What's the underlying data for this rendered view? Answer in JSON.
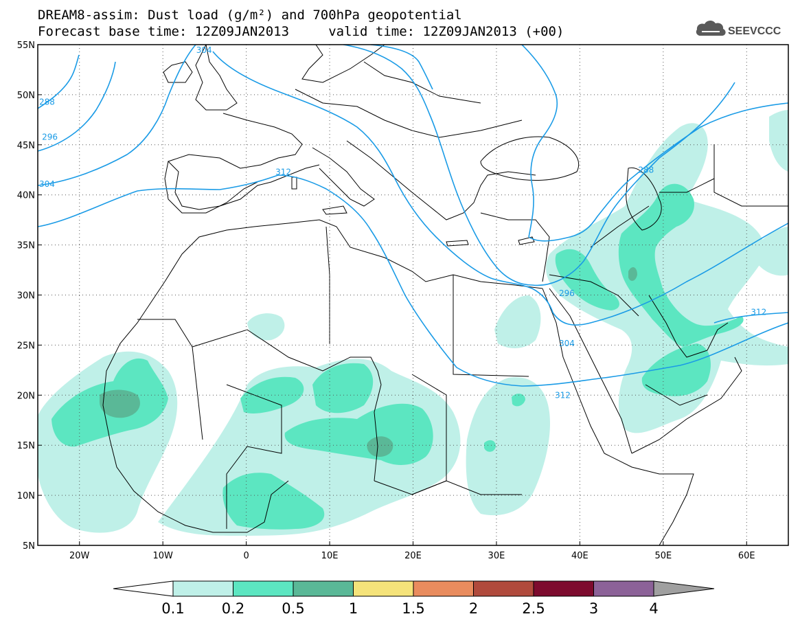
{
  "header": {
    "title_line1": "DREAM8-assim: Dust load (g/m²) and 700hPa geopotential",
    "title_line2": "Forecast base time: 12Z09JAN2013     valid time: 12Z09JAN2013 (+00)",
    "logo_text": "SEEVCCC"
  },
  "map": {
    "lon_range": [
      -25,
      65
    ],
    "lat_range": [
      5,
      55
    ],
    "grid": true,
    "lon_ticks": [
      "20W",
      "10W",
      "0",
      "10E",
      "20E",
      "30E",
      "40E",
      "50E",
      "60E"
    ],
    "lon_tick_values": [
      -20,
      -10,
      0,
      10,
      20,
      30,
      40,
      50,
      60
    ],
    "lat_ticks": [
      "5N",
      "10N",
      "15N",
      "20N",
      "25N",
      "30N",
      "35N",
      "40N",
      "45N",
      "50N",
      "55N"
    ],
    "lat_tick_values": [
      5,
      10,
      15,
      20,
      25,
      30,
      35,
      40,
      45,
      50,
      55
    ],
    "contour_color": "#1a9be6",
    "contour_labels": [
      {
        "text": "288",
        "lon": -25,
        "lat": 49.0
      },
      {
        "text": "296",
        "lon": -24.5,
        "lat": 45.5
      },
      {
        "text": "304",
        "lon": -25,
        "lat": 40.8
      },
      {
        "text": "312",
        "lon": 3.5,
        "lat": 42.0
      },
      {
        "text": "304",
        "lon": -6,
        "lat": 55.0
      },
      {
        "text": "288",
        "lon": 47,
        "lat": 42.2
      },
      {
        "text": "296",
        "lon": 37.5,
        "lat": 29.9
      },
      {
        "text": "304",
        "lon": 37.5,
        "lat": 24.9
      },
      {
        "text": "312",
        "lon": 37.0,
        "lat": 19.7
      },
      {
        "text": "312",
        "lon": 60.5,
        "lat": 28.0
      }
    ]
  },
  "colorbar": {
    "labels": [
      "0.1",
      "0.2",
      "0.5",
      "1",
      "1.5",
      "2",
      "2.5",
      "3",
      "4"
    ],
    "colors": [
      "#bff0e8",
      "#5ce6c1",
      "#5ab897",
      "#f5e37a",
      "#e98c5e",
      "#b04a3c",
      "#7d0b2e",
      "#8c6298"
    ],
    "under_color": "#ffffff",
    "over_color": "#a0a0a0"
  },
  "dust_colors": {
    "level1": "#bff0e8",
    "level2": "#5ce6c1",
    "level3": "#5ab897"
  }
}
